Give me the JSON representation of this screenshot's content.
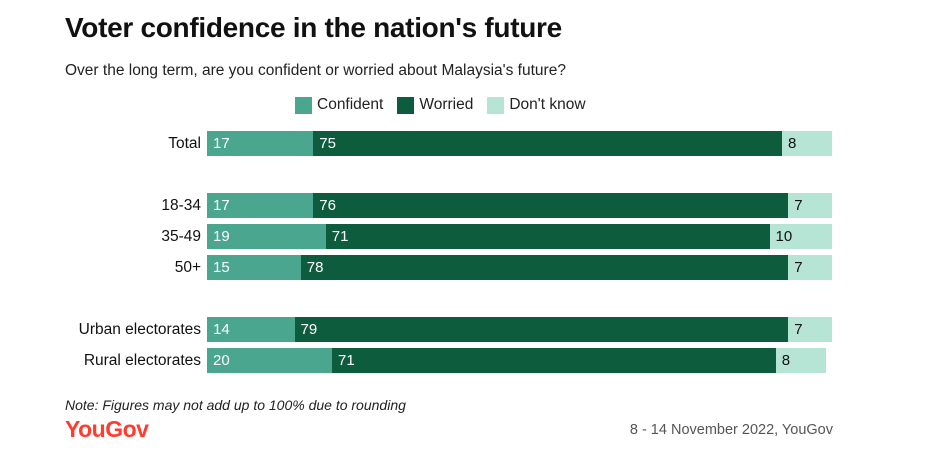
{
  "title": "Voter confidence in the nation's future",
  "subtitle": "Over the long term, are you confident or worried about Malaysia's future?",
  "note": "Note: Figures may not add up to 100% due to rounding",
  "logo_text": "YouGov",
  "source": "8 - 14 November 2022, YouGov",
  "colors": {
    "confident": "#4aa68f",
    "worried": "#0d5c3e",
    "dont_know": "#b6e4d5",
    "logo": "#ff3c2e"
  },
  "chart_data": {
    "type": "bar",
    "orientation": "horizontal",
    "stacked": true,
    "title": "Voter confidence in the nation's future",
    "subtitle": "Over the long term, are you confident or worried about Malaysia's future?",
    "legend_position": "top",
    "grid": false,
    "xlim": [
      0,
      100
    ],
    "categories": [
      "Total",
      "18-34",
      "35-49",
      "50+",
      "Urban electorates",
      "Rural electorates"
    ],
    "groups": [
      [
        0
      ],
      [
        1,
        2,
        3
      ],
      [
        4,
        5
      ]
    ],
    "series": [
      {
        "name": "Confident",
        "key": "confident",
        "values": [
          17,
          17,
          19,
          15,
          14,
          20
        ]
      },
      {
        "name": "Worried",
        "key": "worried",
        "values": [
          75,
          76,
          71,
          78,
          79,
          71
        ]
      },
      {
        "name": "Don't know",
        "key": "dont_know",
        "values": [
          8,
          7,
          10,
          7,
          7,
          8
        ]
      }
    ]
  }
}
